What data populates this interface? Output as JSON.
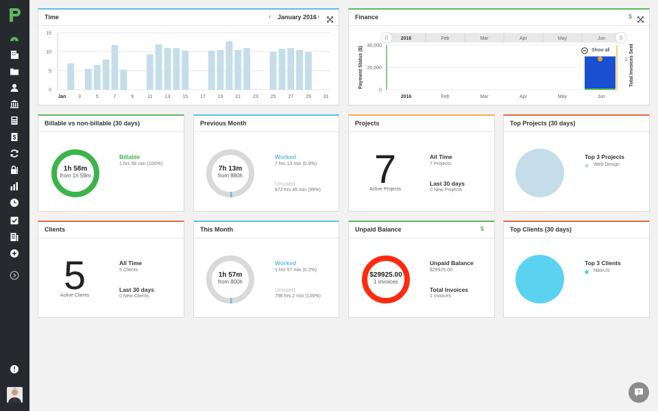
{
  "sidebar": {
    "items": [
      {
        "icon": "dashboard-icon",
        "color": "#5cb85c"
      },
      {
        "icon": "building-icon"
      },
      {
        "icon": "folder-icon"
      },
      {
        "icon": "user-icon"
      },
      {
        "icon": "bank-icon"
      },
      {
        "icon": "calculator-icon"
      },
      {
        "icon": "invoice-dollar-icon"
      },
      {
        "icon": "refresh-icon"
      },
      {
        "icon": "lock-icon"
      },
      {
        "icon": "bar-chart-icon"
      },
      {
        "icon": "clock-icon"
      },
      {
        "icon": "check-square-icon"
      },
      {
        "icon": "report-icon"
      },
      {
        "icon": "add-icon"
      },
      {
        "icon": "expand-icon"
      }
    ],
    "bottom_icon": "power-icon"
  },
  "time_card": {
    "title": "Time",
    "month": "January 2016",
    "chart_data": {
      "type": "bar",
      "x": [
        1,
        2,
        3,
        4,
        5,
        6,
        7,
        8,
        9,
        10,
        11,
        12,
        13,
        14,
        15,
        16,
        17,
        18,
        19,
        20,
        21,
        22,
        23,
        24,
        25,
        26,
        27,
        28,
        29,
        30,
        31
      ],
      "values": [
        0,
        7,
        0,
        5.5,
        6.5,
        8,
        11.8,
        5.3,
        0,
        0,
        9.3,
        12,
        11,
        11,
        10.3,
        0,
        0,
        10.3,
        10.5,
        12.8,
        10.5,
        11,
        0,
        0,
        10,
        10.8,
        11,
        10.5,
        10,
        0,
        0
      ],
      "x_ticks": [
        "Jan",
        "3",
        "5",
        "7",
        "9",
        "11",
        "13",
        "15",
        "17",
        "19",
        "21",
        "23",
        "25",
        "27",
        "29",
        "31"
      ],
      "y_ticks": [
        "0",
        "5",
        "10",
        "15"
      ],
      "ylim": [
        0,
        15
      ],
      "color": "#c5dde9"
    }
  },
  "finance_card": {
    "title": "Finance",
    "currency_icon": "$",
    "show_all_label": "Show all",
    "chart_data": {
      "type": "bar",
      "categories": [
        "2016",
        "Feb",
        "Mar",
        "Apr",
        "May",
        "Jun"
      ],
      "navigator_labels": [
        "2016",
        "Feb",
        "Mar",
        "Apr",
        "May",
        "Jun"
      ],
      "series": [
        {
          "name": "Payment Status ($)",
          "values": [
            0,
            0,
            0,
            0,
            0,
            29925
          ],
          "color": "#1a4fd1"
        },
        {
          "name": "Total Invoices Sent",
          "values": [
            0,
            0,
            0,
            0,
            0,
            2
          ],
          "color": "#f0a01e"
        }
      ],
      "ylabel": "Payment Status ($)",
      "y2label": "Total Invoices Sent",
      "y_ticks": [
        "0",
        "20,000",
        "40,000"
      ],
      "y2_ticks": [
        "2"
      ],
      "ylim": [
        0,
        40000
      ]
    }
  },
  "billable_card": {
    "title": "Billable vs non-billable (30 days)",
    "donut_main": "1h 58m",
    "donut_sub": "from 1h 58m",
    "legend_label": "Billable",
    "legend_detail": "1 hrs 58 min (100%)",
    "progress": 1.0,
    "color": "#3cb44b"
  },
  "previous_month_card": {
    "title": "Previous Month",
    "donut_main": "7h 13m",
    "donut_sub": "from 880h",
    "worked_label": "Worked",
    "worked_detail": "7 hrs 13 min (0.8%)",
    "unused_label": "Unused",
    "unused_detail": "872 hrs 46 min (99%)",
    "progress": 0.008
  },
  "projects_card": {
    "title": "Projects",
    "big_number": "7",
    "big_caption": "Active Projects",
    "stat1_label": "All Time",
    "stat1_value": "7 Projects",
    "stat2_label": "Last 30 days",
    "stat2_value": "0 New Projects"
  },
  "top_projects_card": {
    "title": "Top Projects (30 days)",
    "legend_title": "Top 3 Projects",
    "legend_item": "Web Design",
    "color": "#c5dde9"
  },
  "clients_card": {
    "title": "Clients",
    "big_number": "5",
    "big_caption": "Active Clients",
    "stat1_label": "All Time",
    "stat1_value": "5 Clients",
    "stat2_label": "Last 30 days",
    "stat2_value": "0 New Clients"
  },
  "this_month_card": {
    "title": "This Month",
    "donut_main": "1h 57m",
    "donut_sub": "from 800h",
    "worked_label": "Worked",
    "worked_detail": "1 hrs 57 min (0.2%)",
    "unused_label": "Unused",
    "unused_detail": "798 hrs 2 min (100%)",
    "progress": 0.002
  },
  "unpaid_card": {
    "title": "Unpaid Balance",
    "currency_icon": "$",
    "donut_main": "$29925.00",
    "donut_sub": "1 invoices",
    "stat1_label": "Unpaid Balance",
    "stat1_value": "$29925.00",
    "stat2_label": "Total Invoices",
    "stat2_value": "1 invoices",
    "color": "#ff2b0f"
  },
  "top_clients_card": {
    "title": "Top Clients (30 days)",
    "legend_title": "Top 3 Clients",
    "legend_item": "NikeUS",
    "color": "#5bd3f0"
  }
}
